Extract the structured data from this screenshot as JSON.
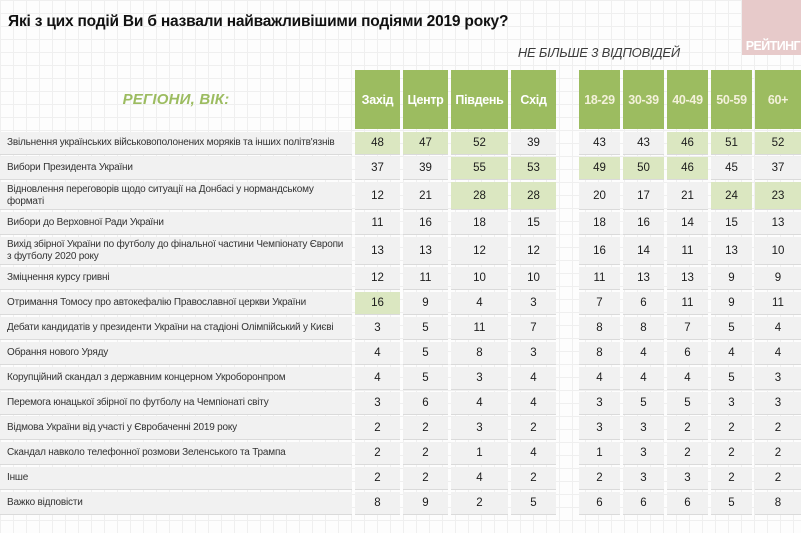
{
  "header": {
    "title": "Які з цих подій Ви б назвали найважливішими подіями 2019 року?",
    "note": "НЕ БІЛЬШЕ 3 ВІДПОВІДЕЙ",
    "logo_text": "РЕЙТИНГ"
  },
  "colors": {
    "header_green": "#9cbc60",
    "highlight_green": "#dbe7c1",
    "cell_gray": "#f1f1f1",
    "logo_pink": "#e7caca",
    "age_header_text": "#f3f1da"
  },
  "chart_data": {
    "type": "table",
    "title": "Які з цих подій Ви б назвали найважливішими подіями 2019 року?",
    "subtitle": "НЕ БІЛЬШЕ 3 ВІДПОВІДЕЙ",
    "group_label": "РЕГІОНИ, ВІК:",
    "columns": [
      "Захід",
      "Центр",
      "Південь",
      "Схід",
      "18-29",
      "30-39",
      "40-49",
      "50-59",
      "60+"
    ],
    "region_column_count": 4,
    "rows": [
      {
        "label": "Звільнення українських військовополонених моряків та інших політв'язнів",
        "values": [
          48,
          47,
          52,
          39,
          43,
          43,
          46,
          51,
          52
        ],
        "highlighted": [
          0,
          1,
          2,
          6,
          7,
          8
        ]
      },
      {
        "label": "Вибори Президента України",
        "values": [
          37,
          39,
          55,
          53,
          49,
          50,
          46,
          45,
          37
        ],
        "highlighted": [
          2,
          3,
          4,
          5,
          6
        ]
      },
      {
        "label": "Відновлення переговорів щодо ситуації на Донбасі у нормандському форматі",
        "values": [
          12,
          21,
          28,
          28,
          20,
          17,
          21,
          24,
          23
        ],
        "highlighted": [
          2,
          3,
          7,
          8
        ]
      },
      {
        "label": "Вибори до Верховної Ради України",
        "values": [
          11,
          16,
          18,
          15,
          18,
          16,
          14,
          15,
          13
        ],
        "highlighted": []
      },
      {
        "label": "Вихід збірної України по футболу до фінальної частини Чемпіонату Європи з футболу 2020 року",
        "values": [
          13,
          13,
          12,
          12,
          16,
          14,
          11,
          13,
          10
        ],
        "highlighted": []
      },
      {
        "label": "Зміцнення курсу гривні",
        "values": [
          12,
          11,
          10,
          10,
          11,
          13,
          13,
          9,
          9
        ],
        "highlighted": []
      },
      {
        "label": "Отримання Томосу про автокефалію Православної церкви України",
        "values": [
          16,
          9,
          4,
          3,
          7,
          6,
          11,
          9,
          11
        ],
        "highlighted": [
          0
        ]
      },
      {
        "label": "Дебати кандидатів у президенти України на стадіоні Олімпійський у Києві",
        "values": [
          3,
          5,
          11,
          7,
          8,
          8,
          7,
          5,
          4
        ],
        "highlighted": []
      },
      {
        "label": "Обрання нового Уряду",
        "values": [
          4,
          5,
          8,
          3,
          8,
          4,
          6,
          4,
          4
        ],
        "highlighted": []
      },
      {
        "label": "Корупційний скандал з державним концерном Укроборонпром",
        "values": [
          4,
          5,
          3,
          4,
          4,
          4,
          4,
          5,
          3
        ],
        "highlighted": []
      },
      {
        "label": "Перемога юнацької збірної по футболу на Чемпіонаті світу",
        "values": [
          3,
          6,
          4,
          4,
          3,
          5,
          5,
          3,
          3
        ],
        "highlighted": []
      },
      {
        "label": "Відмова України від участі у Євробаченні 2019 року",
        "values": [
          2,
          2,
          3,
          2,
          3,
          3,
          2,
          2,
          2
        ],
        "highlighted": []
      },
      {
        "label": "Скандал навколо телефонної розмови Зеленського та Трампа",
        "values": [
          2,
          2,
          1,
          4,
          1,
          3,
          2,
          2,
          2
        ],
        "highlighted": []
      },
      {
        "label": "Інше",
        "values": [
          2,
          2,
          4,
          2,
          2,
          3,
          3,
          2,
          2
        ],
        "highlighted": []
      },
      {
        "label": "Важко відповісти",
        "values": [
          8,
          9,
          2,
          5,
          6,
          6,
          6,
          5,
          8
        ],
        "highlighted": []
      }
    ]
  }
}
